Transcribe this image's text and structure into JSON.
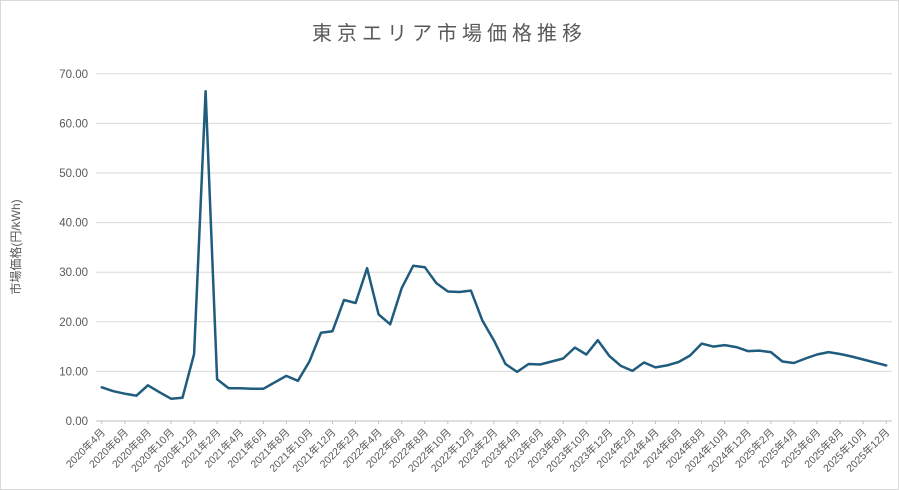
{
  "chart_data": {
    "type": "line",
    "title": "東京エリア市場価格推移",
    "xlabel": "",
    "ylabel": "市場価格(円/kWh)",
    "ylim": [
      0,
      70
    ],
    "y_ticks": [
      "0.00",
      "10.00",
      "20.00",
      "30.00",
      "40.00",
      "50.00",
      "60.00",
      "70.00"
    ],
    "x_tick_interval": 2,
    "grid": "horizontal",
    "legend": "none",
    "categories": [
      "2020年4月",
      "2020年5月",
      "2020年6月",
      "2020年7月",
      "2020年8月",
      "2020年9月",
      "2020年10月",
      "2020年11月",
      "2020年12月",
      "2021年1月",
      "2021年2月",
      "2021年3月",
      "2021年4月",
      "2021年5月",
      "2021年6月",
      "2021年7月",
      "2021年8月",
      "2021年9月",
      "2021年10月",
      "2021年11月",
      "2021年12月",
      "2022年1月",
      "2022年2月",
      "2022年3月",
      "2022年4月",
      "2022年5月",
      "2022年6月",
      "2022年7月",
      "2022年8月",
      "2022年9月",
      "2022年10月",
      "2022年11月",
      "2022年12月",
      "2023年1月",
      "2023年2月",
      "2023年3月",
      "2023年4月",
      "2023年5月",
      "2023年6月",
      "2023年7月",
      "2023年8月",
      "2023年9月",
      "2023年10月",
      "2023年11月",
      "2023年12月",
      "2024年1月",
      "2024年2月",
      "2024年3月",
      "2024年4月",
      "2024年5月",
      "2024年6月",
      "2024年7月",
      "2024年8月",
      "2024年9月",
      "2024年10月",
      "2024年11月",
      "2024年12月",
      "2025年1月",
      "2025年2月",
      "2025年3月",
      "2025年4月",
      "2025年5月",
      "2025年6月",
      "2025年7月",
      "2025年8月",
      "2025年9月",
      "2025年10月",
      "2025年11月",
      "2025年12月"
    ],
    "series": [
      {
        "name": "東京エリア市場価格",
        "values": [
          6.8,
          6.0,
          5.5,
          5.1,
          7.2,
          5.8,
          4.5,
          4.7,
          13.5,
          66.5,
          8.4,
          6.6,
          6.6,
          6.5,
          6.5,
          7.8,
          9.1,
          8.1,
          12.0,
          17.8,
          18.1,
          24.4,
          23.8,
          30.8,
          21.5,
          19.5,
          26.8,
          31.3,
          31.0,
          27.8,
          26.1,
          26.0,
          26.3,
          20.2,
          16.2,
          11.5,
          9.9,
          11.5,
          11.4,
          12.0,
          12.6,
          14.8,
          13.4,
          16.3,
          13.1,
          11.1,
          10.1,
          11.8,
          10.8,
          11.2,
          11.9,
          13.2,
          15.6,
          15.0,
          15.3,
          14.9,
          14.1,
          14.2,
          13.9,
          12.0,
          11.7,
          12.6,
          13.4,
          13.9,
          13.5,
          13.0,
          12.4,
          11.8,
          11.2
        ]
      }
    ],
    "colors": {
      "line": "#1f5c7d",
      "text": "#595959",
      "gridline": "#d9d9d9",
      "axis": "#bfbfbf",
      "chart_border": "#d9d9d9",
      "background": "#ffffff"
    }
  }
}
